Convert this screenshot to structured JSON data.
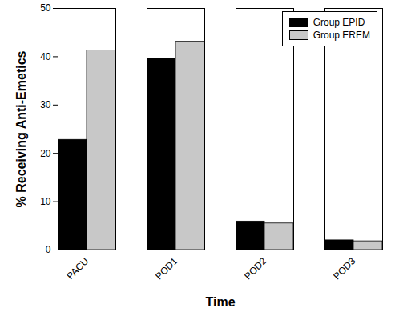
{
  "chart_data": {
    "type": "bar",
    "categories": [
      "PACU",
      "POD1",
      "POD2",
      "POD3"
    ],
    "series": [
      {
        "name": "Group EPID",
        "color": "#000000",
        "values": [
          22.8,
          39.6,
          5.9,
          2.0
        ]
      },
      {
        "name": "Group EREM",
        "color": "#c8c8c8",
        "values": [
          41.3,
          43.1,
          5.5,
          1.8
        ]
      }
    ],
    "x_label": "Time",
    "y_label": "% Receiving Anti-Emetics",
    "ylim": [
      0,
      50
    ],
    "yticks": [
      0,
      10,
      20,
      30,
      40,
      50
    ],
    "legend": "top-right",
    "grid": false
  }
}
